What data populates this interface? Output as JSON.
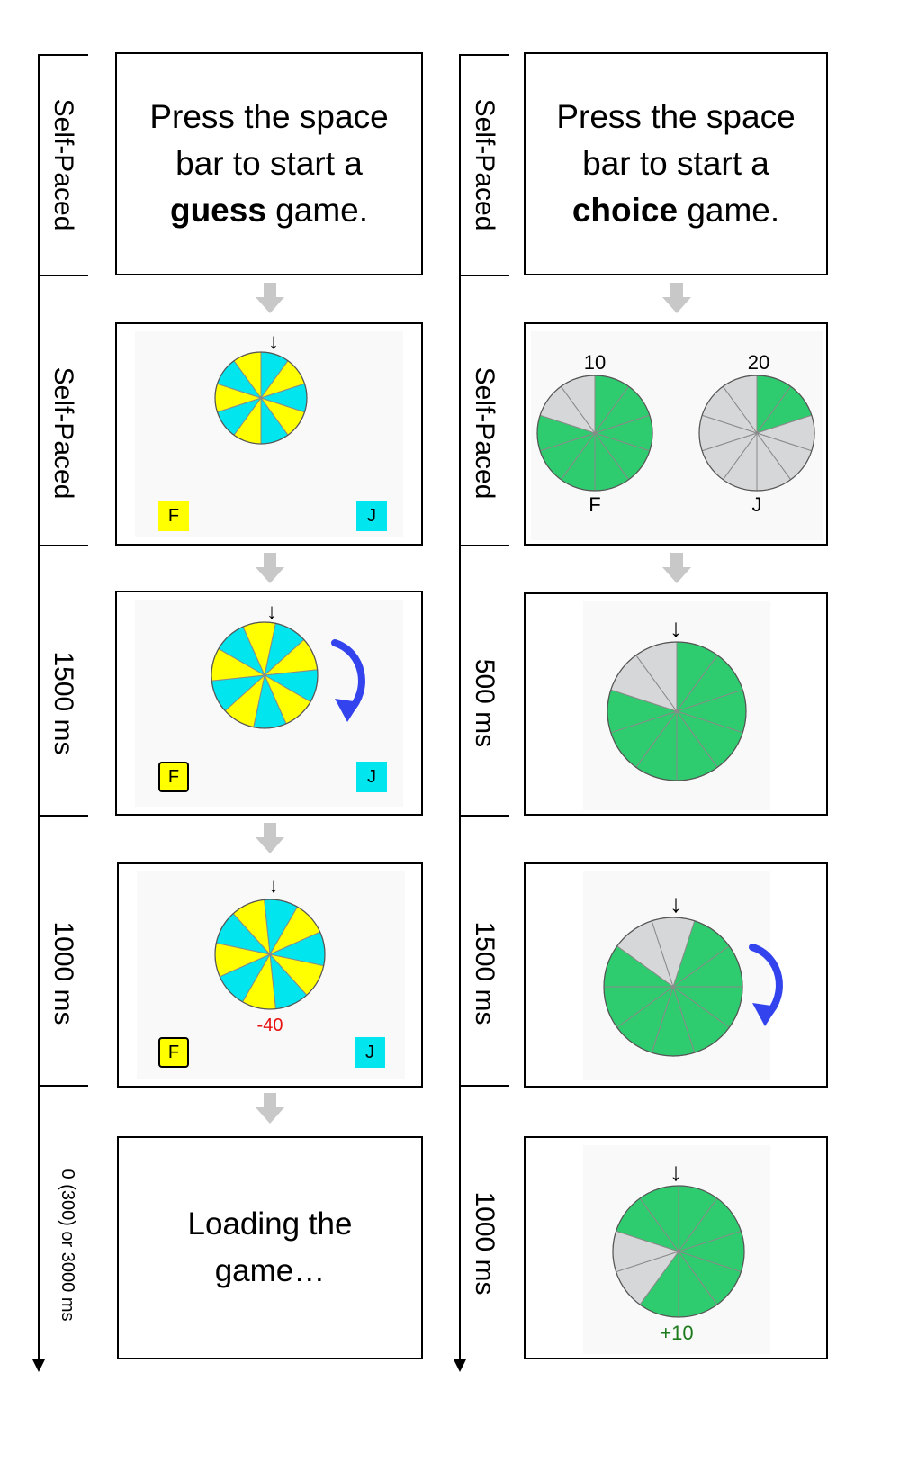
{
  "colors": {
    "yellow": "#ffff00",
    "cyan": "#00e5ee",
    "green": "#2ecc6e",
    "gray": "#d6d7d8",
    "blue": "#3344ee",
    "loss": "#e81010",
    "gain": "#1b7a1b"
  },
  "guess": {
    "durations": [
      "Self-Paced",
      "Self-Paced",
      "1500 ms",
      "1000 ms",
      "0 (300) or 3000 ms"
    ],
    "instruction": {
      "line1": "Press the space",
      "line2": "bar to start a",
      "bold": "guess",
      "rest": " game."
    },
    "keys": {
      "left": "F",
      "right": "J"
    },
    "outcome": "-40",
    "loading": {
      "line1": "Loading the",
      "line2": "game…"
    },
    "pointer_icon": "down-arrow-icon",
    "spin_icon": "clockwise-arrow-icon"
  },
  "choice": {
    "durations": [
      "Self-Paced",
      "Self-Paced",
      "500 ms",
      "1500 ms",
      "1000 ms"
    ],
    "instruction": {
      "line1": "Press the space",
      "line2": "bar to start a",
      "bold": "choice",
      "rest": " game."
    },
    "options": [
      {
        "value": "10",
        "key": "F",
        "green_sectors": 8,
        "total_sectors": 10
      },
      {
        "value": "20",
        "key": "J",
        "green_sectors": 2,
        "total_sectors": 10
      }
    ],
    "outcome": "+10"
  }
}
